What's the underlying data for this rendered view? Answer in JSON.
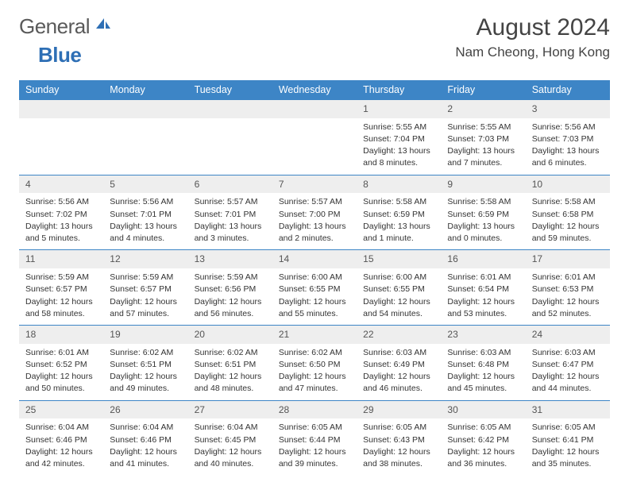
{
  "brand": {
    "general": "General",
    "blue": "Blue"
  },
  "title": "August 2024",
  "location": "Nam Cheong, Hong Kong",
  "colors": {
    "header_bg": "#3d85c6",
    "daynum_bg": "#eeeeee",
    "daynum_border": "#3d85c6",
    "text": "#333333",
    "brand_gray": "#5a5a5a",
    "brand_blue": "#2e6fb5"
  },
  "weekdays": [
    "Sunday",
    "Monday",
    "Tuesday",
    "Wednesday",
    "Thursday",
    "Friday",
    "Saturday"
  ],
  "weeks": [
    [
      {
        "n": "",
        "sr": "",
        "ss": "",
        "dl": ""
      },
      {
        "n": "",
        "sr": "",
        "ss": "",
        "dl": ""
      },
      {
        "n": "",
        "sr": "",
        "ss": "",
        "dl": ""
      },
      {
        "n": "",
        "sr": "",
        "ss": "",
        "dl": ""
      },
      {
        "n": "1",
        "sr": "Sunrise: 5:55 AM",
        "ss": "Sunset: 7:04 PM",
        "dl": "Daylight: 13 hours and 8 minutes."
      },
      {
        "n": "2",
        "sr": "Sunrise: 5:55 AM",
        "ss": "Sunset: 7:03 PM",
        "dl": "Daylight: 13 hours and 7 minutes."
      },
      {
        "n": "3",
        "sr": "Sunrise: 5:56 AM",
        "ss": "Sunset: 7:03 PM",
        "dl": "Daylight: 13 hours and 6 minutes."
      }
    ],
    [
      {
        "n": "4",
        "sr": "Sunrise: 5:56 AM",
        "ss": "Sunset: 7:02 PM",
        "dl": "Daylight: 13 hours and 5 minutes."
      },
      {
        "n": "5",
        "sr": "Sunrise: 5:56 AM",
        "ss": "Sunset: 7:01 PM",
        "dl": "Daylight: 13 hours and 4 minutes."
      },
      {
        "n": "6",
        "sr": "Sunrise: 5:57 AM",
        "ss": "Sunset: 7:01 PM",
        "dl": "Daylight: 13 hours and 3 minutes."
      },
      {
        "n": "7",
        "sr": "Sunrise: 5:57 AM",
        "ss": "Sunset: 7:00 PM",
        "dl": "Daylight: 13 hours and 2 minutes."
      },
      {
        "n": "8",
        "sr": "Sunrise: 5:58 AM",
        "ss": "Sunset: 6:59 PM",
        "dl": "Daylight: 13 hours and 1 minute."
      },
      {
        "n": "9",
        "sr": "Sunrise: 5:58 AM",
        "ss": "Sunset: 6:59 PM",
        "dl": "Daylight: 13 hours and 0 minutes."
      },
      {
        "n": "10",
        "sr": "Sunrise: 5:58 AM",
        "ss": "Sunset: 6:58 PM",
        "dl": "Daylight: 12 hours and 59 minutes."
      }
    ],
    [
      {
        "n": "11",
        "sr": "Sunrise: 5:59 AM",
        "ss": "Sunset: 6:57 PM",
        "dl": "Daylight: 12 hours and 58 minutes."
      },
      {
        "n": "12",
        "sr": "Sunrise: 5:59 AM",
        "ss": "Sunset: 6:57 PM",
        "dl": "Daylight: 12 hours and 57 minutes."
      },
      {
        "n": "13",
        "sr": "Sunrise: 5:59 AM",
        "ss": "Sunset: 6:56 PM",
        "dl": "Daylight: 12 hours and 56 minutes."
      },
      {
        "n": "14",
        "sr": "Sunrise: 6:00 AM",
        "ss": "Sunset: 6:55 PM",
        "dl": "Daylight: 12 hours and 55 minutes."
      },
      {
        "n": "15",
        "sr": "Sunrise: 6:00 AM",
        "ss": "Sunset: 6:55 PM",
        "dl": "Daylight: 12 hours and 54 minutes."
      },
      {
        "n": "16",
        "sr": "Sunrise: 6:01 AM",
        "ss": "Sunset: 6:54 PM",
        "dl": "Daylight: 12 hours and 53 minutes."
      },
      {
        "n": "17",
        "sr": "Sunrise: 6:01 AM",
        "ss": "Sunset: 6:53 PM",
        "dl": "Daylight: 12 hours and 52 minutes."
      }
    ],
    [
      {
        "n": "18",
        "sr": "Sunrise: 6:01 AM",
        "ss": "Sunset: 6:52 PM",
        "dl": "Daylight: 12 hours and 50 minutes."
      },
      {
        "n": "19",
        "sr": "Sunrise: 6:02 AM",
        "ss": "Sunset: 6:51 PM",
        "dl": "Daylight: 12 hours and 49 minutes."
      },
      {
        "n": "20",
        "sr": "Sunrise: 6:02 AM",
        "ss": "Sunset: 6:51 PM",
        "dl": "Daylight: 12 hours and 48 minutes."
      },
      {
        "n": "21",
        "sr": "Sunrise: 6:02 AM",
        "ss": "Sunset: 6:50 PM",
        "dl": "Daylight: 12 hours and 47 minutes."
      },
      {
        "n": "22",
        "sr": "Sunrise: 6:03 AM",
        "ss": "Sunset: 6:49 PM",
        "dl": "Daylight: 12 hours and 46 minutes."
      },
      {
        "n": "23",
        "sr": "Sunrise: 6:03 AM",
        "ss": "Sunset: 6:48 PM",
        "dl": "Daylight: 12 hours and 45 minutes."
      },
      {
        "n": "24",
        "sr": "Sunrise: 6:03 AM",
        "ss": "Sunset: 6:47 PM",
        "dl": "Daylight: 12 hours and 44 minutes."
      }
    ],
    [
      {
        "n": "25",
        "sr": "Sunrise: 6:04 AM",
        "ss": "Sunset: 6:46 PM",
        "dl": "Daylight: 12 hours and 42 minutes."
      },
      {
        "n": "26",
        "sr": "Sunrise: 6:04 AM",
        "ss": "Sunset: 6:46 PM",
        "dl": "Daylight: 12 hours and 41 minutes."
      },
      {
        "n": "27",
        "sr": "Sunrise: 6:04 AM",
        "ss": "Sunset: 6:45 PM",
        "dl": "Daylight: 12 hours and 40 minutes."
      },
      {
        "n": "28",
        "sr": "Sunrise: 6:05 AM",
        "ss": "Sunset: 6:44 PM",
        "dl": "Daylight: 12 hours and 39 minutes."
      },
      {
        "n": "29",
        "sr": "Sunrise: 6:05 AM",
        "ss": "Sunset: 6:43 PM",
        "dl": "Daylight: 12 hours and 38 minutes."
      },
      {
        "n": "30",
        "sr": "Sunrise: 6:05 AM",
        "ss": "Sunset: 6:42 PM",
        "dl": "Daylight: 12 hours and 36 minutes."
      },
      {
        "n": "31",
        "sr": "Sunrise: 6:05 AM",
        "ss": "Sunset: 6:41 PM",
        "dl": "Daylight: 12 hours and 35 minutes."
      }
    ]
  ]
}
